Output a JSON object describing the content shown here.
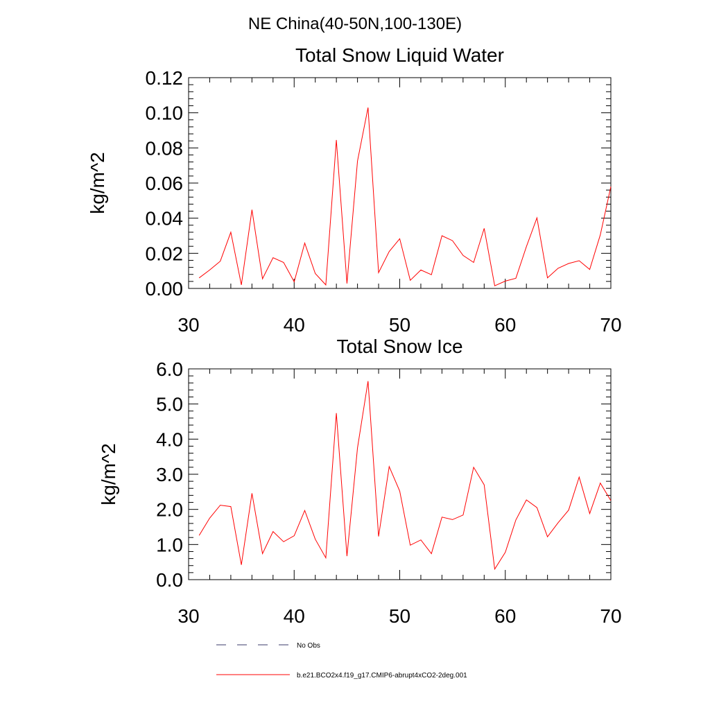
{
  "figure_title": "NE China(40-50N,100-130E)",
  "legend": {
    "entries": [
      {
        "label": "No Obs",
        "style": "dashed",
        "color": "#3a3a6a"
      },
      {
        "label": "b.e21.BCO2x4.f19_g17.CMIP6-abrupt4xCO2-2deg.001",
        "style": "solid",
        "color": "#ff0000"
      }
    ]
  },
  "chart_data": [
    {
      "type": "line",
      "title": "Total Snow Liquid Water",
      "xlabel": "",
      "ylabel": "kg/m^2",
      "xlim": [
        30,
        70
      ],
      "ylim": [
        0,
        0.12
      ],
      "x_ticks": [
        "30",
        "40",
        "50",
        "60",
        "70"
      ],
      "y_ticks": [
        "0.00",
        "0.02",
        "0.04",
        "0.06",
        "0.08",
        "0.10",
        "0.12"
      ],
      "grid": false,
      "series": [
        {
          "color": "#ff0000",
          "x": [
            31,
            32,
            33,
            34,
            35,
            36,
            37,
            38,
            39,
            40,
            41,
            42,
            43,
            44,
            45,
            46,
            47,
            48,
            49,
            50,
            51,
            52,
            53,
            54,
            55,
            56,
            57,
            58,
            59,
            60,
            61,
            62,
            63,
            64,
            65,
            66,
            67,
            68,
            69,
            70
          ],
          "y": [
            0.006,
            0.0105,
            0.0155,
            0.032,
            0.002,
            0.0448,
            0.0055,
            0.0175,
            0.0148,
            0.0038,
            0.0258,
            0.0085,
            0.002,
            0.0845,
            0.0028,
            0.0725,
            0.103,
            0.009,
            0.021,
            0.0283,
            0.0046,
            0.0105,
            0.0078,
            0.03,
            0.0272,
            0.0188,
            0.0148,
            0.0342,
            0.0015,
            0.0042,
            0.0058,
            0.0238,
            0.0402,
            0.006,
            0.0115,
            0.0142,
            0.0158,
            0.0108,
            0.0305,
            0.058
          ]
        }
      ]
    },
    {
      "type": "line",
      "title": "Total Snow Ice",
      "xlabel": "",
      "ylabel": "kg/m^2",
      "xlim": [
        30,
        70
      ],
      "ylim": [
        0,
        6
      ],
      "x_ticks": [
        "30",
        "40",
        "50",
        "60",
        "70"
      ],
      "y_ticks": [
        "0.0",
        "1.0",
        "2.0",
        "3.0",
        "4.0",
        "5.0",
        "6.0"
      ],
      "grid": false,
      "series": [
        {
          "color": "#ff0000",
          "x": [
            31,
            32,
            33,
            34,
            35,
            36,
            37,
            38,
            39,
            40,
            41,
            42,
            43,
            44,
            45,
            46,
            47,
            48,
            49,
            50,
            51,
            52,
            53,
            54,
            55,
            56,
            57,
            58,
            59,
            60,
            61,
            62,
            63,
            64,
            65,
            66,
            67,
            68,
            69,
            70
          ],
          "y": [
            1.26,
            1.75,
            2.12,
            2.08,
            0.42,
            2.46,
            0.74,
            1.37,
            1.08,
            1.25,
            1.97,
            1.15,
            0.62,
            4.74,
            0.67,
            3.75,
            5.65,
            1.23,
            3.22,
            2.52,
            0.98,
            1.13,
            0.74,
            1.78,
            1.71,
            1.84,
            3.2,
            2.7,
            0.3,
            0.78,
            1.7,
            2.27,
            2.05,
            1.22,
            1.62,
            1.98,
            2.92,
            1.88,
            2.75,
            2.25
          ]
        }
      ]
    }
  ]
}
